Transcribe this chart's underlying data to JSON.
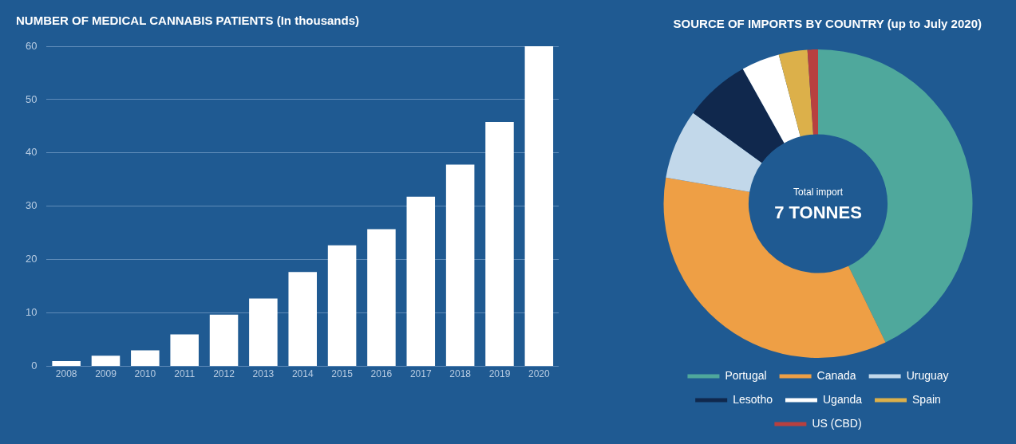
{
  "chart_data": [
    {
      "type": "bar",
      "title": "NUMBER OF MEDICAL CANNABIS PATIENTS (In thousands)",
      "categories": [
        "2008",
        "2009",
        "2010",
        "2011",
        "2012",
        "2013",
        "2014",
        "2015",
        "2016",
        "2017",
        "2018",
        "2019",
        "2020"
      ],
      "values": [
        1,
        2,
        3,
        6,
        9.7,
        12.7,
        17.7,
        22.7,
        25.7,
        31.8,
        37.8,
        45.8,
        60
      ],
      "color": "#ffffff",
      "ylim": [
        0,
        60
      ],
      "yticks": [
        0,
        10,
        20,
        30,
        40,
        50,
        60
      ],
      "grid": "y",
      "legend": false
    },
    {
      "type": "donut",
      "title": "SOURCE OF IMPORTS BY COUNTRY (up to July 2020)",
      "categories": [
        "Portugal",
        "Canada",
        "Uruguay",
        "Lesotho",
        "Uganda",
        "Spain",
        "US (CBD)"
      ],
      "values": [
        42.8,
        34.9,
        7.3,
        6.9,
        4.0,
        3.0,
        1.1
      ],
      "colors": [
        "#4fa89c",
        "#ee9f45",
        "#c2d8ea",
        "#10284d",
        "#ffffff",
        "#dcb04a",
        "#b8403f"
      ],
      "legend": "bottom",
      "annotations": [
        "Total import",
        "7 TONNES"
      ]
    }
  ]
}
